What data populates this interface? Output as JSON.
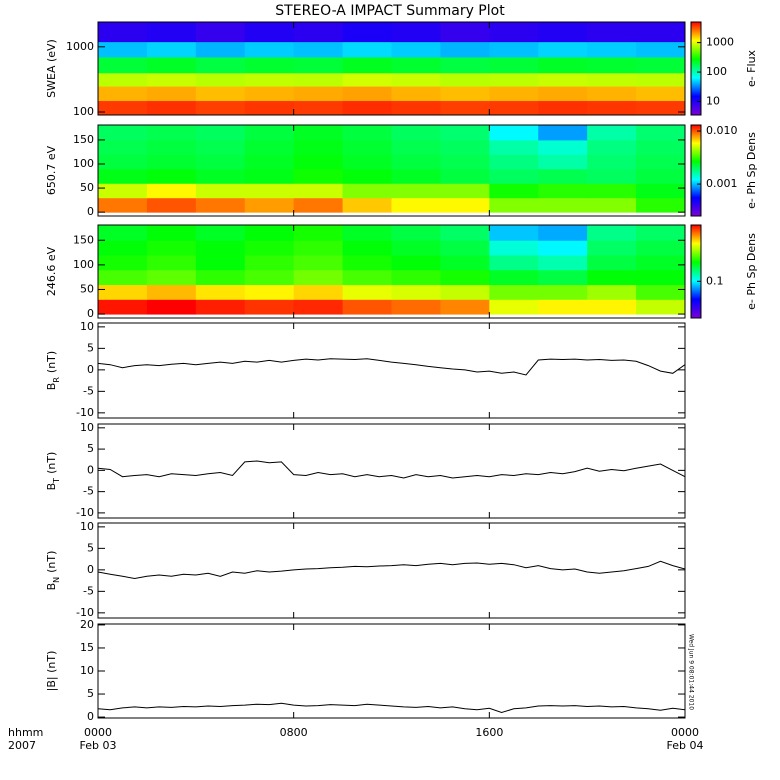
{
  "title": "STEREO-A IMPACT Summary Plot",
  "time_label": "hhmm",
  "year_label": "2007",
  "timestamp": "Wed Jun 9 08:01:44 2010",
  "colormap": [
    "#7a00d6",
    "#0000ff",
    "#00ffff",
    "#00ff00",
    "#ffff00",
    "#ff0000"
  ],
  "chart_data": [
    {
      "type": "heatmap",
      "ylabel": "SWEA (eV)",
      "ylog": true,
      "ylim": [
        90,
        2400
      ],
      "yticks": [
        100,
        1000
      ],
      "xlim": [
        0,
        24
      ],
      "xticks": [
        0,
        8,
        16,
        24
      ],
      "x_edges": [
        0,
        2,
        4,
        6,
        8,
        10,
        12,
        14,
        16,
        18,
        20,
        22,
        24
      ],
      "y_edges": [
        90,
        150,
        250,
        400,
        700,
        1200,
        2400
      ],
      "values": [
        [
          3600,
          3800,
          3500,
          3700,
          3600,
          3900,
          3700,
          3500,
          3600,
          3800,
          3700,
          3600
        ],
        [
          1800,
          1900,
          1700,
          1800,
          1900,
          2000,
          1800,
          1700,
          1800,
          1900,
          1800,
          1700
        ],
        [
          800,
          850,
          780,
          820,
          800,
          900,
          850,
          780,
          800,
          850,
          820,
          800
        ],
        [
          200,
          220,
          190,
          210,
          200,
          230,
          210,
          190,
          200,
          220,
          210,
          200
        ],
        [
          45,
          50,
          42,
          48,
          45,
          52,
          48,
          42,
          45,
          50,
          48,
          45
        ],
        [
          9,
          10,
          8,
          10,
          9,
          11,
          10,
          8,
          9,
          10,
          9,
          9
        ]
      ],
      "colorbar": {
        "label": "e- Flux",
        "log": true,
        "zlim": [
          3.5,
          5000
        ],
        "ticks": [
          10,
          100,
          1000
        ]
      }
    },
    {
      "type": "heatmap",
      "ylabel": "650.7 eV",
      "ylim": [
        -8,
        181
      ],
      "yticks": [
        0,
        50,
        100,
        150
      ],
      "xlim": [
        0,
        24
      ],
      "xticks": [
        0,
        8,
        16,
        24
      ],
      "x_edges": [
        0,
        2,
        4,
        6,
        8,
        10,
        12,
        14,
        16,
        18,
        20,
        22,
        24
      ],
      "y_edges": [
        0,
        30,
        60,
        90,
        120,
        150,
        180
      ],
      "values": [
        [
          0.009,
          0.01,
          0.009,
          0.008,
          0.009,
          0.007,
          0.006,
          0.006,
          0.004,
          0.004,
          0.004,
          0.003
        ],
        [
          0.005,
          0.006,
          0.005,
          0.005,
          0.005,
          0.004,
          0.004,
          0.004,
          0.0028,
          0.003,
          0.003,
          0.0025
        ],
        [
          0.0025,
          0.0026,
          0.0024,
          0.0025,
          0.0028,
          0.0026,
          0.0024,
          0.0022,
          0.002,
          0.0021,
          0.002,
          0.0022
        ],
        [
          0.0022,
          0.0023,
          0.0022,
          0.0024,
          0.0026,
          0.0024,
          0.0022,
          0.0021,
          0.0018,
          0.0016,
          0.0019,
          0.0021
        ],
        [
          0.0021,
          0.0022,
          0.0021,
          0.0023,
          0.0025,
          0.0023,
          0.0021,
          0.002,
          0.0016,
          0.0014,
          0.0018,
          0.002
        ],
        [
          0.002,
          0.0021,
          0.002,
          0.0022,
          0.0024,
          0.0022,
          0.002,
          0.0019,
          0.0012,
          0.0009,
          0.0016,
          0.0019
        ]
      ],
      "colorbar": {
        "label": "e- Ph Sp Dens",
        "log": true,
        "zlim": [
          0.00025,
          0.013
        ],
        "ticks": [
          0.001,
          {
            "value": 0.01,
            "label": "0.010"
          }
        ]
      }
    },
    {
      "type": "heatmap",
      "ylabel": "246.6 eV",
      "ylim": [
        -8,
        181
      ],
      "yticks": [
        0,
        50,
        100,
        150
      ],
      "xlim": [
        0,
        24
      ],
      "xticks": [
        0,
        8,
        16,
        24
      ],
      "x_edges": [
        0,
        2,
        4,
        6,
        8,
        10,
        12,
        14,
        16,
        18,
        20,
        22,
        24
      ],
      "y_edges": [
        0,
        30,
        60,
        90,
        120,
        150,
        180
      ],
      "values": [
        [
          0.48,
          0.5,
          0.47,
          0.45,
          0.46,
          0.42,
          0.4,
          0.38,
          0.28,
          0.3,
          0.3,
          0.26
        ],
        [
          0.32,
          0.34,
          0.31,
          0.3,
          0.32,
          0.28,
          0.27,
          0.26,
          0.22,
          0.22,
          0.24,
          0.2
        ],
        [
          0.2,
          0.21,
          0.19,
          0.2,
          0.22,
          0.2,
          0.19,
          0.18,
          0.16,
          0.15,
          0.17,
          0.17
        ],
        [
          0.18,
          0.19,
          0.17,
          0.19,
          0.2,
          0.18,
          0.17,
          0.16,
          0.13,
          0.12,
          0.15,
          0.16
        ],
        [
          0.17,
          0.18,
          0.17,
          0.18,
          0.19,
          0.17,
          0.16,
          0.15,
          0.11,
          0.1,
          0.14,
          0.15
        ],
        [
          0.16,
          0.17,
          0.16,
          0.17,
          0.18,
          0.16,
          0.15,
          0.14,
          0.09,
          0.085,
          0.13,
          0.14
        ]
      ],
      "colorbar": {
        "label": "e- Ph Sp Dens",
        "log": true,
        "zlim": [
          0.035,
          0.5
        ],
        "ticks": [
          0.1
        ]
      }
    },
    {
      "type": "line",
      "ylabel": "B",
      "ylabel_sub": "R",
      "ylabel_unit": "(nT)",
      "color": "#000000",
      "ylim": [
        -11.2,
        10.9
      ],
      "yticks": [
        -10,
        -5,
        0,
        5,
        10
      ],
      "xlim": [
        0,
        24
      ],
      "xticks": [
        0,
        8,
        16,
        24
      ],
      "x": [
        0,
        0.5,
        1,
        1.5,
        2,
        2.5,
        3,
        3.5,
        4,
        4.5,
        5,
        5.5,
        6,
        6.5,
        7,
        7.5,
        8,
        8.5,
        9,
        9.5,
        10,
        10.5,
        11,
        11.5,
        12,
        12.5,
        13,
        13.5,
        14,
        14.5,
        15,
        15.5,
        16,
        16.5,
        17,
        17.5,
        18,
        18.5,
        19,
        19.5,
        20,
        20.5,
        21,
        21.5,
        22,
        22.5,
        23,
        23.5,
        24
      ],
      "values": [
        1.5,
        1.2,
        0.5,
        1.0,
        1.2,
        1.0,
        1.3,
        1.5,
        1.2,
        1.5,
        1.8,
        1.5,
        2.0,
        1.8,
        2.2,
        1.8,
        2.2,
        2.5,
        2.3,
        2.6,
        2.5,
        2.4,
        2.6,
        2.2,
        1.8,
        1.5,
        1.2,
        0.8,
        0.5,
        0.2,
        0.0,
        -0.5,
        -0.3,
        -0.8,
        -0.5,
        -1.2,
        2.3,
        2.5,
        2.4,
        2.5,
        2.3,
        2.4,
        2.2,
        2.3,
        2.0,
        1.0,
        -0.3,
        -0.8,
        1.2
      ]
    },
    {
      "type": "line",
      "ylabel": "B",
      "ylabel_sub": "T",
      "ylabel_unit": "(nT)",
      "color": "#000000",
      "ylim": [
        -11.2,
        10.9
      ],
      "yticks": [
        -10,
        -5,
        0,
        5,
        10
      ],
      "xlim": [
        0,
        24
      ],
      "xticks": [
        0,
        8,
        16,
        24
      ],
      "x": [
        0,
        0.5,
        1,
        1.5,
        2,
        2.5,
        3,
        3.5,
        4,
        4.5,
        5,
        5.5,
        6,
        6.5,
        7,
        7.5,
        8,
        8.5,
        9,
        9.5,
        10,
        10.5,
        11,
        11.5,
        12,
        12.5,
        13,
        13.5,
        14,
        14.5,
        15,
        15.5,
        16,
        16.5,
        17,
        17.5,
        18,
        18.5,
        19,
        19.5,
        20,
        20.5,
        21,
        21.5,
        22,
        22.5,
        23,
        23.5,
        24
      ],
      "values": [
        0.5,
        0.2,
        -1.5,
        -1.2,
        -1.0,
        -1.5,
        -0.8,
        -1.0,
        -1.2,
        -0.8,
        -0.5,
        -1.2,
        2.0,
        2.2,
        1.8,
        2.0,
        -1.0,
        -1.2,
        -0.5,
        -1.0,
        -0.8,
        -1.5,
        -1.0,
        -1.5,
        -1.2,
        -1.8,
        -1.0,
        -1.5,
        -1.2,
        -1.8,
        -1.5,
        -1.2,
        -1.5,
        -1.0,
        -1.2,
        -0.8,
        -1.0,
        -0.5,
        -0.8,
        -0.3,
        0.5,
        -0.2,
        0.2,
        -0.1,
        0.5,
        1.0,
        1.5,
        0.0,
        -1.5
      ]
    },
    {
      "type": "line",
      "ylabel": "B",
      "ylabel_sub": "N",
      "ylabel_unit": "(nT)",
      "color": "#000000",
      "ylim": [
        -11.2,
        10.9
      ],
      "yticks": [
        -10,
        -5,
        0,
        5,
        10
      ],
      "xlim": [
        0,
        24
      ],
      "xticks": [
        0,
        8,
        16,
        24
      ],
      "x": [
        0,
        0.5,
        1,
        1.5,
        2,
        2.5,
        3,
        3.5,
        4,
        4.5,
        5,
        5.5,
        6,
        6.5,
        7,
        7.5,
        8,
        8.5,
        9,
        9.5,
        10,
        10.5,
        11,
        11.5,
        12,
        12.5,
        13,
        13.5,
        14,
        14.5,
        15,
        15.5,
        16,
        16.5,
        17,
        17.5,
        18,
        18.5,
        19,
        19.5,
        20,
        20.5,
        21,
        21.5,
        22,
        22.5,
        23,
        23.5,
        24
      ],
      "values": [
        -0.5,
        -1.0,
        -1.5,
        -2.0,
        -1.5,
        -1.2,
        -1.5,
        -1.0,
        -1.2,
        -0.8,
        -1.5,
        -0.5,
        -0.8,
        -0.2,
        -0.5,
        -0.3,
        0.0,
        0.2,
        0.3,
        0.5,
        0.6,
        0.8,
        0.7,
        0.9,
        1.0,
        1.2,
        1.0,
        1.3,
        1.5,
        1.2,
        1.5,
        1.6,
        1.3,
        1.5,
        1.2,
        0.5,
        1.0,
        0.3,
        0.0,
        0.2,
        -0.5,
        -0.8,
        -0.5,
        -0.2,
        0.3,
        0.8,
        2.0,
        1.0,
        0.2
      ]
    },
    {
      "type": "line",
      "ylabel": "|B| (nT)",
      "color": "#000000",
      "ylim": [
        -0.2,
        20.2
      ],
      "yticks": [
        0,
        5,
        10,
        15,
        20
      ],
      "xlim": [
        0,
        24
      ],
      "xticks": [
        {
          "value": 0,
          "label": "0000"
        },
        {
          "value": 8,
          "label": "0800"
        },
        {
          "value": 16,
          "label": "1600"
        },
        {
          "value": 24,
          "label": "0000"
        }
      ],
      "date_labels": [
        {
          "value": 0,
          "label": "Feb 03"
        },
        {
          "value": 24,
          "label": "Feb 04"
        }
      ],
      "x": [
        0,
        0.5,
        1,
        1.5,
        2,
        2.5,
        3,
        3.5,
        4,
        4.5,
        5,
        5.5,
        6,
        6.5,
        7,
        7.5,
        8,
        8.5,
        9,
        9.5,
        10,
        10.5,
        11,
        11.5,
        12,
        12.5,
        13,
        13.5,
        14,
        14.5,
        15,
        15.5,
        16,
        16.5,
        17,
        17.5,
        18,
        18.5,
        19,
        19.5,
        20,
        20.5,
        21,
        21.5,
        22,
        22.5,
        23,
        23.5,
        24
      ],
      "values": [
        1.8,
        1.6,
        2.0,
        2.2,
        2.0,
        2.2,
        2.1,
        2.3,
        2.2,
        2.4,
        2.3,
        2.5,
        2.6,
        2.8,
        2.7,
        3.0,
        2.6,
        2.4,
        2.5,
        2.7,
        2.6,
        2.5,
        2.8,
        2.6,
        2.4,
        2.2,
        2.1,
        2.3,
        2.0,
        2.2,
        1.8,
        1.6,
        1.9,
        1.0,
        1.8,
        2.0,
        2.4,
        2.5,
        2.4,
        2.5,
        2.3,
        2.4,
        2.2,
        2.3,
        2.0,
        1.8,
        1.5,
        1.9,
        1.6
      ]
    }
  ]
}
